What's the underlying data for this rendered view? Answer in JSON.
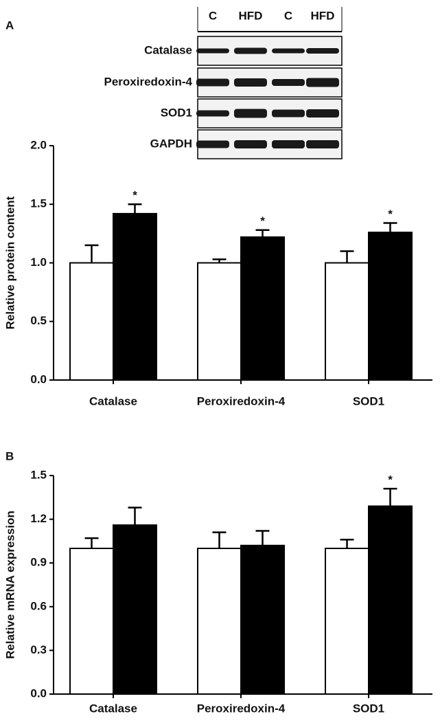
{
  "blot": {
    "lanes": [
      "C",
      "HFD",
      "C",
      "HFD"
    ],
    "rows": [
      "Catalase",
      "Peroxiredoxin-4",
      "SOD1",
      "GAPDH"
    ]
  },
  "chart_data": [
    {
      "type": "bar",
      "panel_label": "A",
      "y_label": "Relative protein content",
      "categories": [
        "Catalase",
        "Peroxiredoxin-4",
        "SOD1"
      ],
      "series": [
        {
          "color": "#ffffff",
          "values": [
            1.0,
            1.0,
            1.0
          ],
          "errors": [
            0.15,
            0.03,
            0.1
          ]
        },
        {
          "color": "#000000",
          "values": [
            1.42,
            1.22,
            1.26
          ],
          "errors": [
            0.08,
            0.06,
            0.08
          ],
          "annotations": [
            "*",
            "*",
            "*"
          ]
        }
      ],
      "ylim": [
        0,
        2.0
      ],
      "yticks": [
        {
          "value": 0,
          "label": "0.0"
        },
        0.5,
        {
          "value": 1,
          "label": "1.0"
        },
        1.5,
        {
          "value": 2,
          "label": "2.0"
        }
      ]
    },
    {
      "type": "bar",
      "panel_label": "B",
      "y_label": "Relative mRNA expression",
      "categories": [
        "Catalase",
        "Peroxiredoxin-4",
        "SOD1"
      ],
      "series": [
        {
          "color": "#ffffff",
          "values": [
            1.0,
            1.0,
            1.0
          ],
          "errors": [
            0.07,
            0.11,
            0.06
          ]
        },
        {
          "color": "#000000",
          "values": [
            1.16,
            1.02,
            1.29
          ],
          "errors": [
            0.12,
            0.1,
            0.12
          ],
          "annotations": [
            null,
            null,
            "*"
          ]
        }
      ],
      "ylim": [
        0,
        1.5
      ],
      "yticks": [
        {
          "value": 0,
          "label": "0.0"
        },
        0.3,
        0.6,
        0.9,
        1.2,
        1.5
      ]
    }
  ]
}
